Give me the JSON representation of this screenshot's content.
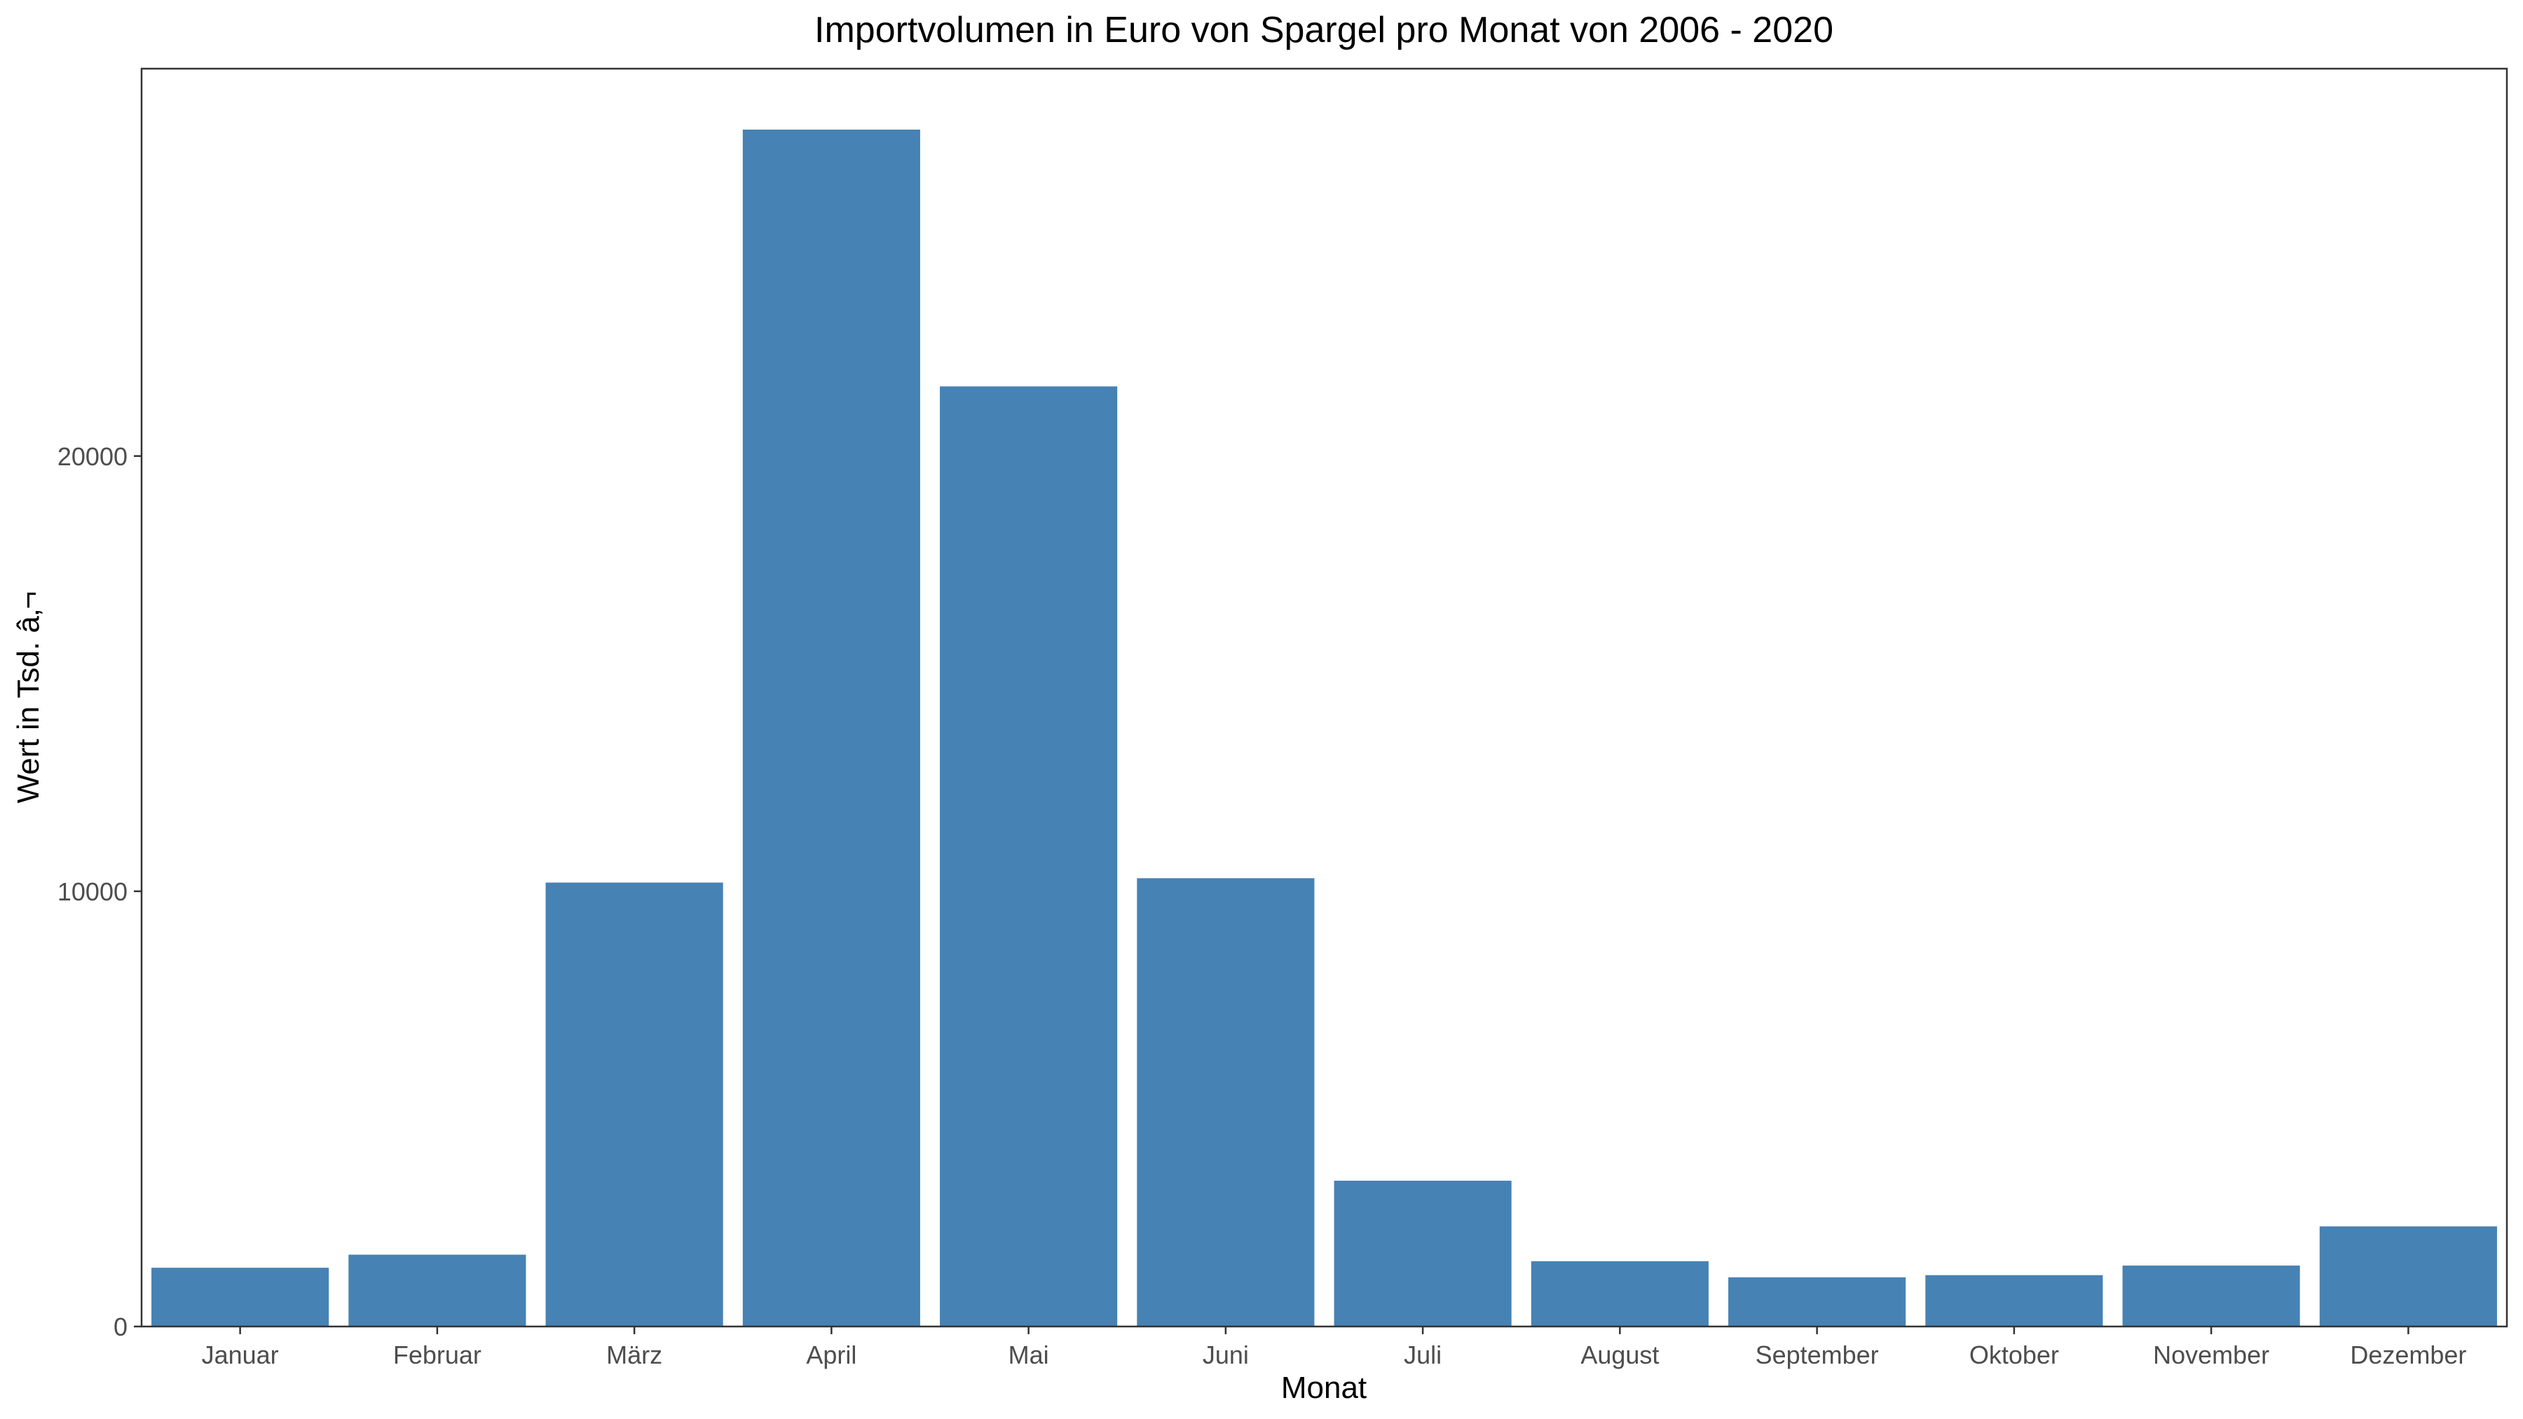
{
  "chart_data": {
    "type": "bar",
    "title": "Importvolumen in Euro von Spargel pro Monat von 2006 - 2020",
    "xlabel": "Monat",
    "ylabel": "Wert in Tsd. â‚¬",
    "categories": [
      "Januar",
      "Februar",
      "März",
      "April",
      "Mai",
      "Juni",
      "Juli",
      "August",
      "September",
      "Oktober",
      "November",
      "Dezember"
    ],
    "values": [
      1350,
      1650,
      10200,
      27500,
      21600,
      10300,
      3350,
      1500,
      1130,
      1180,
      1400,
      2300
    ],
    "yticks": [
      0,
      10000,
      20000
    ],
    "ylim": [
      0,
      28900
    ],
    "grid": false,
    "legend": "none",
    "bar_color": "#4682B4"
  }
}
